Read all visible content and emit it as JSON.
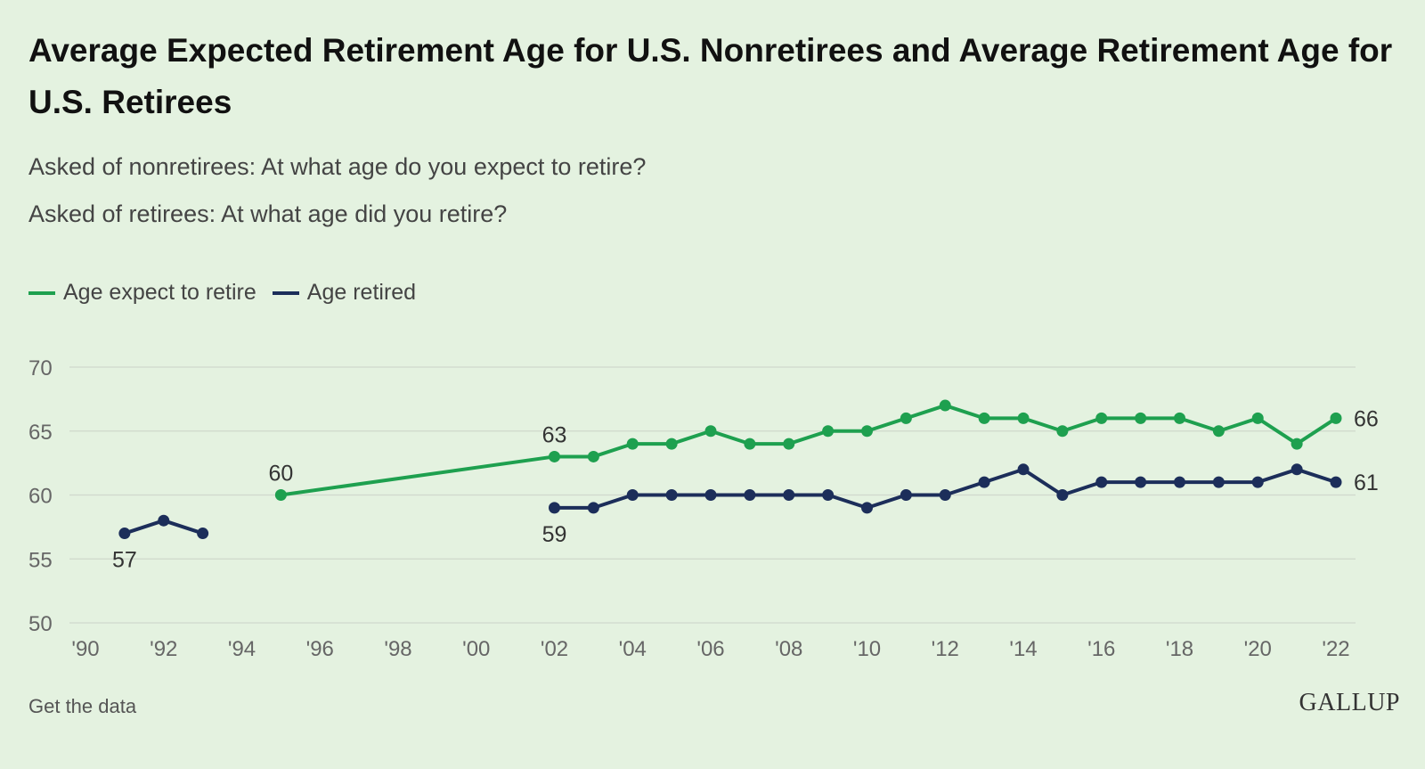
{
  "header": {
    "title": "Average Expected Retirement Age for U.S. Nonretirees and Average Retirement Age for U.S. Retirees",
    "subtitle_1": "Asked of nonretirees: At what age do you expect to retire?",
    "subtitle_2": "Asked of retirees: At what age did you retire?"
  },
  "footer": {
    "link_text": "Get the data",
    "brand": "GALLUP"
  },
  "chart_data": {
    "type": "line",
    "xlim": [
      1990,
      2022
    ],
    "ylim": [
      50,
      70
    ],
    "yticks": [
      50,
      55,
      60,
      65,
      70
    ],
    "ytick_labels": [
      "50",
      "55",
      "60",
      "65",
      "70"
    ],
    "xticks": [
      1990,
      1992,
      1994,
      1996,
      1998,
      2000,
      2002,
      2004,
      2006,
      2008,
      2010,
      2012,
      2014,
      2016,
      2018,
      2020,
      2022
    ],
    "xtick_labels": [
      "'90",
      "'92",
      "'94",
      "'96",
      "'98",
      "'00",
      "'02",
      "'04",
      "'06",
      "'08",
      "'10",
      "'12",
      "'14",
      "'16",
      "'18",
      "'20",
      "'22"
    ],
    "grid": "horizontal",
    "legend_position": "top-left",
    "series": [
      {
        "name": "Age expect to retire",
        "color": "#1ea04f",
        "segments": [
          {
            "x": [
              1995,
              2002,
              2003,
              2004,
              2005,
              2006,
              2007,
              2008,
              2009,
              2010,
              2011,
              2012,
              2013,
              2014,
              2015,
              2016,
              2017,
              2018,
              2019,
              2020,
              2021,
              2022
            ],
            "y": [
              60,
              63,
              63,
              64,
              64,
              65,
              64,
              64,
              65,
              65,
              66,
              67,
              66,
              66,
              65,
              66,
              66,
              66,
              65,
              66,
              64,
              66
            ]
          }
        ],
        "labels": [
          {
            "x": 1995,
            "y": 60,
            "text": "60",
            "pos": "above"
          },
          {
            "x": 2002,
            "y": 63,
            "text": "63",
            "pos": "above"
          },
          {
            "x": 2022,
            "y": 66,
            "text": "66",
            "pos": "right"
          }
        ]
      },
      {
        "name": "Age retired",
        "color": "#1c2e5a",
        "segments": [
          {
            "x": [
              1991,
              1992,
              1993
            ],
            "y": [
              57,
              58,
              57
            ]
          },
          {
            "x": [
              2002,
              2003,
              2004,
              2005,
              2006,
              2007,
              2008,
              2009,
              2010,
              2011,
              2012,
              2013,
              2014,
              2015,
              2016,
              2017,
              2018,
              2019,
              2020,
              2021,
              2022
            ],
            "y": [
              59,
              59,
              60,
              60,
              60,
              60,
              60,
              60,
              59,
              60,
              60,
              61,
              62,
              60,
              61,
              61,
              61,
              61,
              61,
              62,
              61
            ]
          }
        ],
        "labels": [
          {
            "x": 1991,
            "y": 57,
            "text": "57",
            "pos": "below"
          },
          {
            "x": 2002,
            "y": 59,
            "text": "59",
            "pos": "below"
          },
          {
            "x": 2022,
            "y": 61,
            "text": "61",
            "pos": "right"
          }
        ]
      }
    ]
  }
}
